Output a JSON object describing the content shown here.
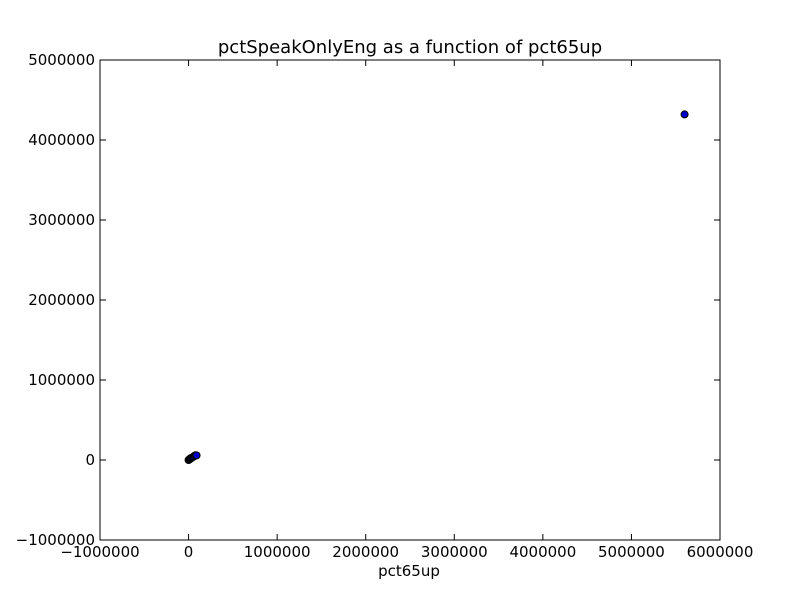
{
  "chart_data": {
    "type": "scatter",
    "title": "pctSpeakOnlyEng as a function of pct65up",
    "xlabel": "pct65up",
    "ylabel": "",
    "xlim": [
      -1000000,
      6000000
    ],
    "ylim": [
      -1000000,
      5000000
    ],
    "xticks": [
      -1000000,
      0,
      1000000,
      2000000,
      3000000,
      4000000,
      5000000,
      6000000
    ],
    "yticks": [
      -1000000,
      0,
      1000000,
      2000000,
      3000000,
      4000000,
      5000000
    ],
    "xtick_labels": [
      "−1000000",
      "0",
      "1000000",
      "2000000",
      "3000000",
      "4000000",
      "5000000",
      "6000000"
    ],
    "ytick_labels": [
      "−1000000",
      "0",
      "1000000",
      "2000000",
      "3000000",
      "4000000",
      "5000000"
    ],
    "grid": false,
    "marker_color": "#0000cc",
    "marker_edge_color": "#000000",
    "points": [
      {
        "x": 0,
        "y": 0
      },
      {
        "x": 5000,
        "y": 4000
      },
      {
        "x": 10000,
        "y": 9000
      },
      {
        "x": 15000,
        "y": 12000
      },
      {
        "x": 20000,
        "y": 20000
      },
      {
        "x": 25000,
        "y": 22000
      },
      {
        "x": 30000,
        "y": 25000
      },
      {
        "x": 40000,
        "y": 30000
      },
      {
        "x": 50000,
        "y": 38000
      },
      {
        "x": 60000,
        "y": 45000
      },
      {
        "x": 70000,
        "y": 55000
      },
      {
        "x": 80000,
        "y": 60000
      },
      {
        "x": 90000,
        "y": 58000
      },
      {
        "x": 5600000,
        "y": 4320000
      }
    ]
  }
}
